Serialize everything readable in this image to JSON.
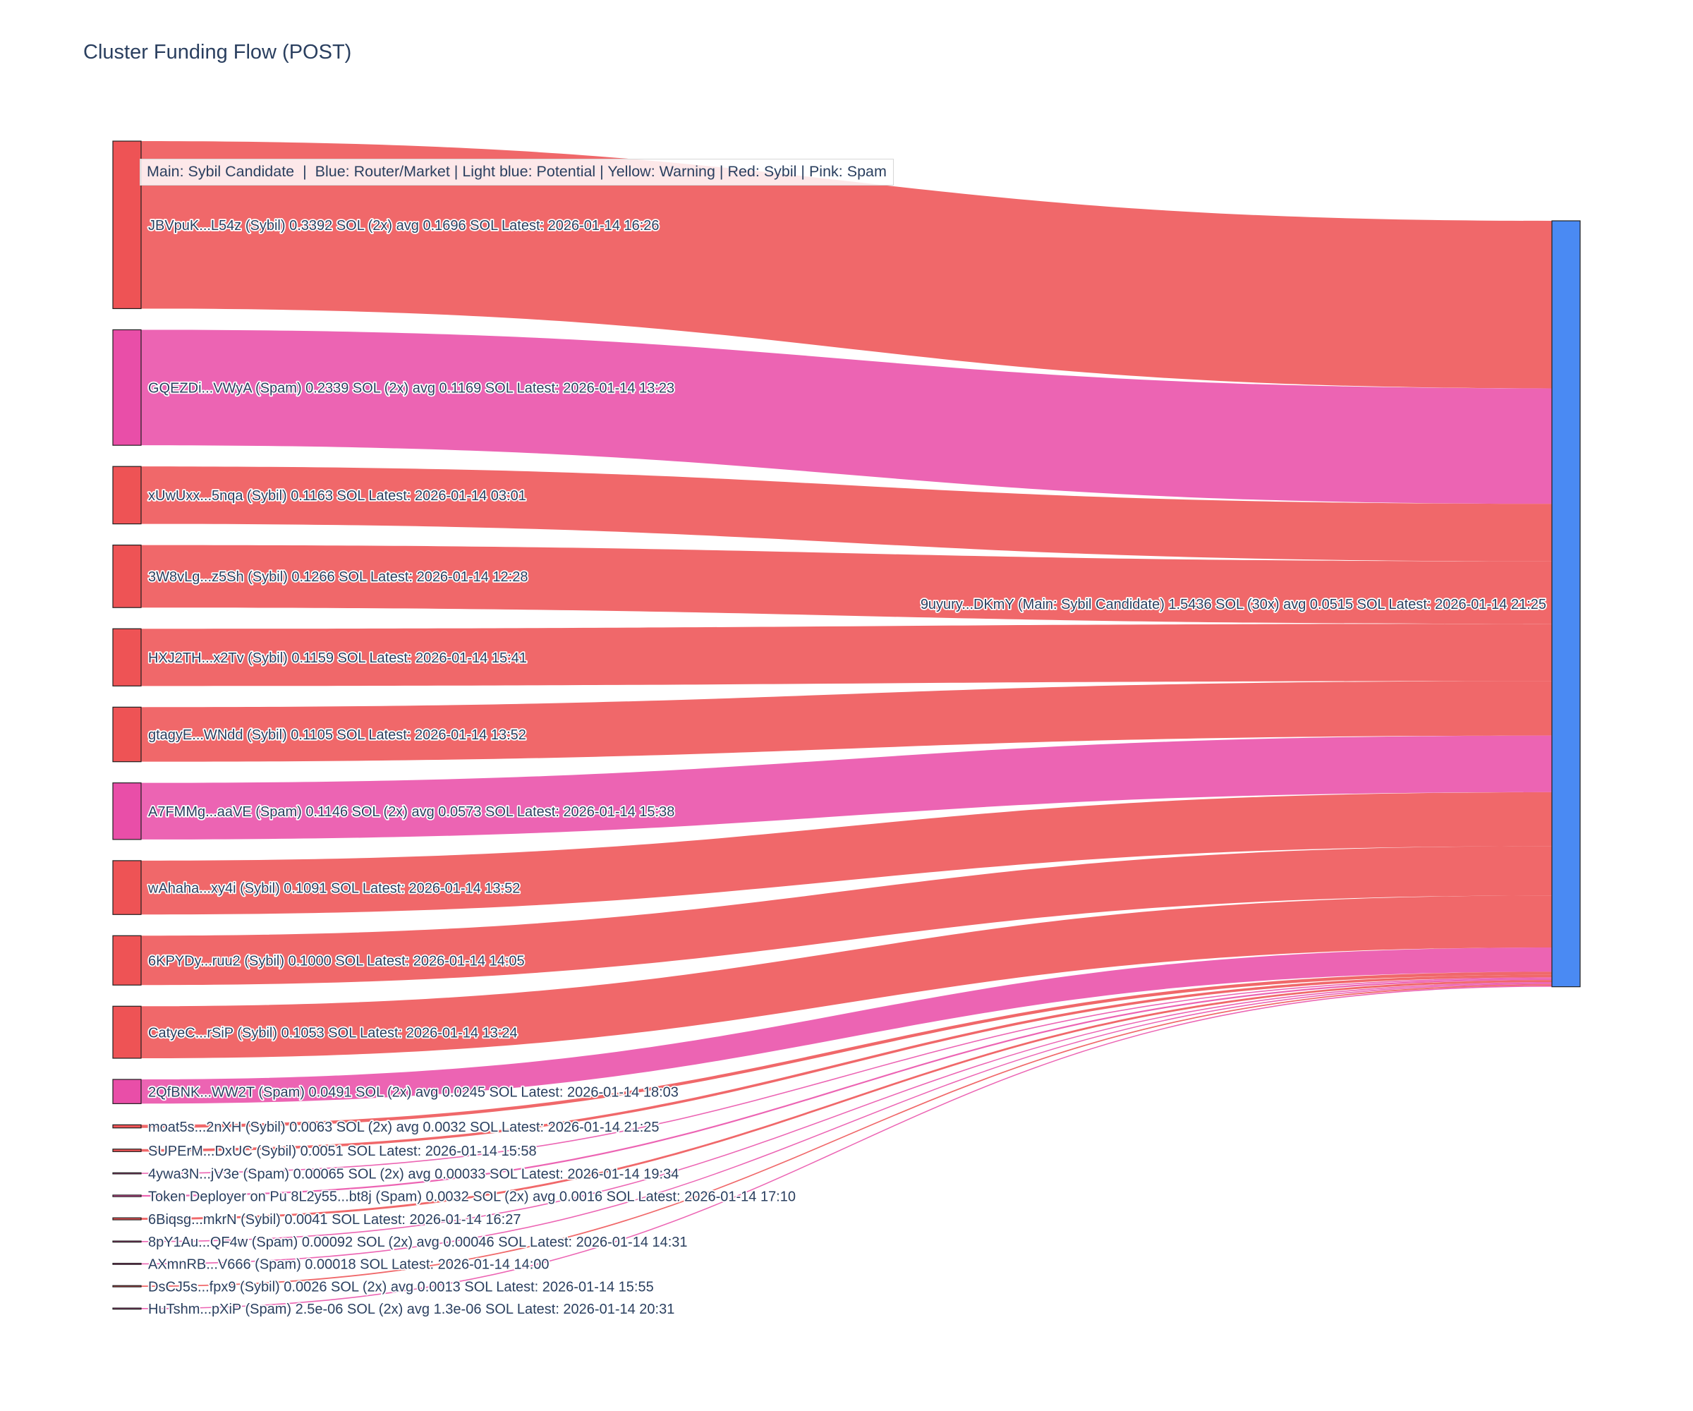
{
  "title": "Cluster Funding Flow (POST)",
  "legend_note": "Main: Sybil Candidate  |  Blue: Router/Market | Light blue: Potential | Yellow: Warning | Red: Sybil | Pink: Spam",
  "colors": {
    "sybil": "#ee5355",
    "spam": "#e94ea8",
    "main": "#4a8af3",
    "label_text": "#2a3f5f",
    "node_outline": "#1f1f1f"
  },
  "chart_data": {
    "type": "sankey",
    "unit": "SOL",
    "title": "Cluster Funding Flow (POST)",
    "target": {
      "label": "9uyury...DKmY (Main: Sybil Candidate) 1.5436 SOL (30x) avg 0.0515 SOL Latest: 2026-01-14 21:25",
      "address": "9uyury...DKmY",
      "category": "main",
      "total_sol": 1.5436,
      "tx_count": "30x",
      "avg_sol": 0.0515,
      "latest": "2026-01-14 21:25"
    },
    "sources": [
      {
        "label": "JBVpuK...L54z (Sybil) 0.3392 SOL (2x) avg 0.1696 SOL Latest: 2026-01-14 16:26",
        "address": "JBVpuK...L54z",
        "category": "sybil",
        "value": 0.3392,
        "latest": "2026-01-14 16:26"
      },
      {
        "label": "GQEZDi...VWyA (Spam) 0.2339 SOL (2x) avg 0.1169 SOL Latest: 2026-01-14 13:23",
        "address": "GQEZDi...VWyA",
        "category": "spam",
        "value": 0.2339,
        "latest": "2026-01-14 13:23"
      },
      {
        "label": "xUwUxx...5nqa (Sybil) 0.1163 SOL Latest: 2026-01-14 03:01",
        "address": "xUwUxx...5nqa",
        "category": "sybil",
        "value": 0.1163,
        "latest": "2026-01-14 03:01"
      },
      {
        "label": "3W8vLg...z5Sh (Sybil) 0.1266 SOL Latest: 2026-01-14 12:28",
        "address": "3W8vLg...z5Sh",
        "category": "sybil",
        "value": 0.1266,
        "latest": "2026-01-14 12:28"
      },
      {
        "label": "HXJ2TH...x2Tv (Sybil) 0.1159 SOL Latest: 2026-01-14 15:41",
        "address": "HXJ2TH...x2Tv",
        "category": "sybil",
        "value": 0.1159,
        "latest": "2026-01-14 15:41"
      },
      {
        "label": "gtagyE...WNdd (Sybil) 0.1105 SOL Latest: 2026-01-14 13:52",
        "address": "gtagyE...WNdd",
        "category": "sybil",
        "value": 0.1105,
        "latest": "2026-01-14 13:52"
      },
      {
        "label": "A7FMMg...aaVE (Spam) 0.1146 SOL (2x) avg 0.0573 SOL Latest: 2026-01-14 15:38",
        "address": "A7FMMg...aaVE",
        "category": "spam",
        "value": 0.1146,
        "latest": "2026-01-14 15:38"
      },
      {
        "label": "wAhaha...xy4i (Sybil) 0.1091 SOL Latest: 2026-01-14 13:52",
        "address": "wAhaha...xy4i",
        "category": "sybil",
        "value": 0.1091,
        "latest": "2026-01-14 13:52"
      },
      {
        "label": "6KPYDy...ruu2 (Sybil) 0.1000 SOL Latest: 2026-01-14 14:05",
        "address": "6KPYDy...ruu2",
        "category": "sybil",
        "value": 0.1,
        "latest": "2026-01-14 14:05"
      },
      {
        "label": "CatyeC...rSiP (Sybil) 0.1053 SOL Latest: 2026-01-14 13:24",
        "address": "CatyeC...rSiP",
        "category": "sybil",
        "value": 0.1053,
        "latest": "2026-01-14 13:24"
      },
      {
        "label": "2QfBNK...WW2T (Spam) 0.0491 SOL (2x) avg 0.0245 SOL Latest: 2026-01-14 18:03",
        "address": "2QfBNK...WW2T",
        "category": "spam",
        "value": 0.0491,
        "latest": "2026-01-14 18:03"
      },
      {
        "label": "moat5s...2nXH (Sybil) 0.0063 SOL (2x) avg 0.0032 SOL Latest: 2026-01-14 21:25",
        "address": "moat5s...2nXH",
        "category": "sybil",
        "value": 0.0063,
        "latest": "2026-01-14 21:25"
      },
      {
        "label": "SUPErM...DxUC (Sybil) 0.0051 SOL Latest: 2026-01-14 15:58",
        "address": "SUPErM...DxUC",
        "category": "sybil",
        "value": 0.0051,
        "latest": "2026-01-14 15:58"
      },
      {
        "label": "4ywa3N...jV3e (Spam) 0.00065 SOL (2x) avg 0.00033 SOL Latest: 2026-01-14 19:34",
        "address": "4ywa3N...jV3e",
        "category": "spam",
        "value": 0.00065,
        "latest": "2026-01-14 19:34"
      },
      {
        "label": "Token Deployer on Pu 8L2y55...bt8j (Spam) 0.0032 SOL (2x) avg 0.0016 SOL Latest: 2026-01-14 17:10",
        "address": "8L2y55...bt8j",
        "category": "spam",
        "value": 0.0032,
        "latest": "2026-01-14 17:10"
      },
      {
        "label": "6Biqsg...mkrN (Sybil) 0.0041 SOL Latest: 2026-01-14 16:27",
        "address": "6Biqsg...mkrN",
        "category": "sybil",
        "value": 0.0041,
        "latest": "2026-01-14 16:27"
      },
      {
        "label": "8pY1Au...QF4w (Spam) 0.00092 SOL (2x) avg 0.00046 SOL Latest: 2026-01-14 14:31",
        "address": "8pY1Au...QF4w",
        "category": "spam",
        "value": 0.00092,
        "latest": "2026-01-14 14:31"
      },
      {
        "label": "AXmnRB...V666 (Spam) 0.00018 SOL Latest: 2026-01-14 14:00",
        "address": "AXmnRB...V666",
        "category": "spam",
        "value": 0.00018,
        "latest": "2026-01-14 14:00"
      },
      {
        "label": "DsCJ5s...fpx9 (Sybil) 0.0026 SOL (2x) avg 0.0013 SOL Latest: 2026-01-14 15:55",
        "address": "DsCJ5s...fpx9",
        "category": "sybil",
        "value": 0.0026,
        "latest": "2026-01-14 15:55"
      },
      {
        "label": "HuTshm...pXiP (Spam) 2.5e-06 SOL (2x) avg 1.3e-06 SOL Latest: 2026-01-14 20:31",
        "address": "HuTshm...pXiP",
        "category": "spam",
        "value": 2.5e-06,
        "latest": "2026-01-14 20:31"
      }
    ]
  }
}
